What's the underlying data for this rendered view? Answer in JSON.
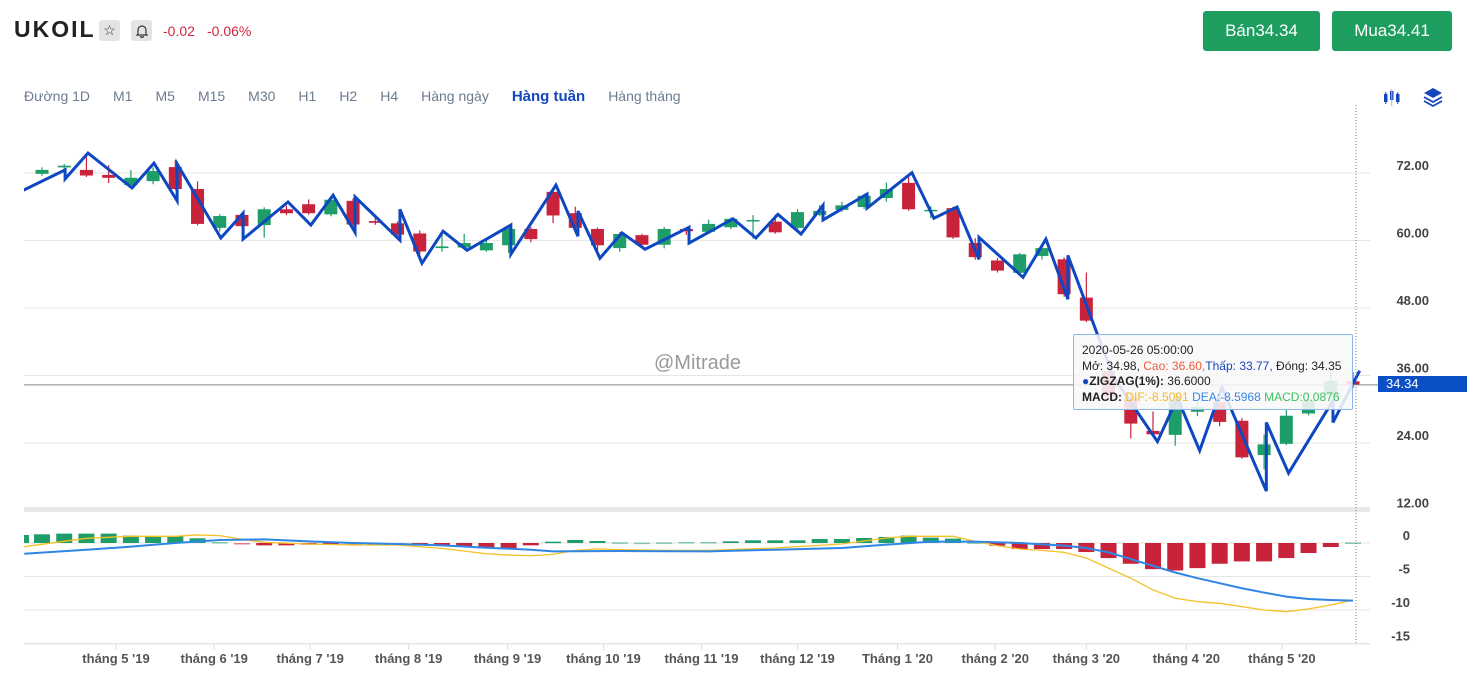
{
  "header": {
    "symbol": "UKOIL",
    "change_abs": "-0.02",
    "change_pct": "-0.06%",
    "sell_label": "Bán34.34",
    "buy_label": "Mua34.41"
  },
  "timeframes": [
    {
      "label": "Đường 1D",
      "active": false
    },
    {
      "label": "M1",
      "active": false
    },
    {
      "label": "M5",
      "active": false
    },
    {
      "label": "M15",
      "active": false
    },
    {
      "label": "M30",
      "active": false
    },
    {
      "label": "H1",
      "active": false
    },
    {
      "label": "H2",
      "active": false
    },
    {
      "label": "H4",
      "active": false
    },
    {
      "label": "Hàng ngày",
      "active": false
    },
    {
      "label": "Hàng tuần",
      "active": true
    },
    {
      "label": "Hàng tháng",
      "active": false
    }
  ],
  "watermark": "@Mitrade",
  "current_price": "34.34",
  "tooltip": {
    "datetime": "2020-05-26 05:00:00",
    "open": "Mở: 34.98,",
    "high": "Cao: 36.60,",
    "low": "Thấp: 33.77,",
    "close": "Đóng: 34.35",
    "zigzag_name": "ZIGZAG(1%):",
    "zigzag_value": "36.6000",
    "macd_name": "MACD:",
    "dif": "DIF:-8.5091",
    "dea": "DEA:-8.5968",
    "macd": "MACD:0.0876"
  },
  "colors": {
    "up": "#1f9d68",
    "down": "#c8233b",
    "zigzag": "#0d47c1",
    "dif": "#f5c026",
    "dea": "#2f86e6",
    "accent": "#1446bd"
  },
  "chart_data": {
    "type": "candlestick",
    "price_axis": {
      "ticks": [
        "72.00",
        "60.00",
        "48.00",
        "36.00",
        "24.00",
        "12.00"
      ],
      "values": [
        72,
        60,
        48,
        36,
        24,
        12
      ],
      "range": [
        12,
        72
      ]
    },
    "macd_axis": {
      "ticks": [
        "0",
        "-5",
        "-10",
        "-15"
      ],
      "values": [
        0,
        -5,
        -10,
        -15
      ]
    },
    "x_labels": [
      {
        "label": "tháng 5 '19",
        "index": 3.33
      },
      {
        "label": "tháng 6 '19",
        "index": 7.75
      },
      {
        "label": "tháng 7 '19",
        "index": 12.07
      },
      {
        "label": "tháng 8 '19",
        "index": 16.5
      },
      {
        "label": "tháng 9 '19",
        "index": 20.95
      },
      {
        "label": "tháng 10 '19",
        "index": 25.27
      },
      {
        "label": "tháng 11 '19",
        "index": 29.68
      },
      {
        "label": "tháng 12 '19",
        "index": 34.0
      },
      {
        "label": "Tháng 1 '20",
        "index": 38.5
      },
      {
        "label": "tháng 2 '20",
        "index": 42.9
      },
      {
        "label": "tháng 3 '20",
        "index": 47.0
      },
      {
        "label": "tháng 4 '20",
        "index": 51.5
      },
      {
        "label": "tháng 5 '20",
        "index": 55.8
      }
    ],
    "candles_ohlc": [
      [
        71.85,
        73.0,
        71.5,
        72.55
      ],
      [
        73.0,
        73.6,
        72.7,
        73.3
      ],
      [
        72.55,
        75.3,
        71.3,
        71.55
      ],
      [
        71.65,
        73.4,
        70.2,
        71.15
      ],
      [
        69.85,
        72.5,
        69.6,
        71.15
      ],
      [
        70.55,
        73.0,
        70.0,
        72.35
      ],
      [
        73.05,
        74.3,
        69.0,
        69.15
      ],
      [
        69.15,
        70.5,
        62.7,
        62.95
      ],
      [
        62.25,
        64.7,
        61.6,
        64.35
      ],
      [
        64.55,
        64.8,
        62.3,
        62.55
      ],
      [
        62.75,
        65.9,
        60.5,
        65.55
      ],
      [
        65.55,
        66.2,
        64.5,
        64.85
      ],
      [
        66.45,
        67.3,
        64.6,
        64.85
      ],
      [
        64.65,
        67.8,
        64.3,
        67.25
      ],
      [
        67.05,
        67.5,
        62.6,
        62.85
      ],
      [
        63.45,
        64.0,
        62.8,
        63.15
      ],
      [
        63.05,
        63.4,
        60.8,
        61.05
      ],
      [
        61.25,
        61.8,
        57.5,
        58.05
      ],
      [
        58.65,
        61.5,
        58.0,
        58.95
      ],
      [
        58.75,
        61.2,
        58.5,
        59.55
      ],
      [
        58.25,
        60.3,
        58.0,
        59.55
      ],
      [
        59.15,
        62.3,
        57.8,
        62.05
      ],
      [
        62.05,
        62.4,
        59.7,
        60.25
      ],
      [
        68.65,
        69.3,
        63.1,
        64.45
      ],
      [
        64.85,
        66.0,
        61.9,
        62.25
      ],
      [
        62.05,
        62.3,
        57.4,
        59.15
      ],
      [
        58.65,
        61.5,
        58.0,
        61.15
      ],
      [
        60.95,
        61.2,
        58.6,
        59.25
      ],
      [
        59.25,
        62.4,
        58.6,
        62.05
      ],
      [
        62.05,
        62.4,
        61.0,
        61.65
      ],
      [
        61.55,
        63.7,
        61.2,
        62.95
      ],
      [
        62.35,
        64.1,
        62.0,
        63.85
      ],
      [
        63.55,
        64.5,
        60.3,
        63.65
      ],
      [
        63.35,
        64.6,
        61.2,
        61.45
      ],
      [
        62.25,
        65.6,
        61.8,
        65.05
      ],
      [
        64.55,
        66.3,
        64.3,
        65.25
      ],
      [
        65.45,
        66.9,
        65.1,
        66.25
      ],
      [
        65.95,
        68.3,
        65.6,
        67.95
      ],
      [
        67.55,
        70.3,
        66.9,
        69.15
      ],
      [
        70.25,
        71.5,
        65.3,
        65.55
      ],
      [
        65.35,
        66.1,
        64.0,
        65.45
      ],
      [
        65.75,
        66.0,
        60.3,
        60.55
      ],
      [
        59.55,
        60.4,
        56.6,
        57.05
      ],
      [
        56.45,
        56.9,
        54.3,
        54.65
      ],
      [
        54.25,
        57.8,
        53.8,
        57.55
      ],
      [
        57.25,
        59.0,
        56.6,
        58.65
      ],
      [
        56.65,
        57.0,
        50.0,
        50.45
      ],
      [
        49.85,
        54.3,
        45.5,
        45.75
      ],
      [
        36.75,
        38.0,
        31.5,
        32.25
      ],
      [
        32.05,
        33.0,
        24.8,
        27.45
      ],
      [
        26.15,
        29.6,
        25.3,
        25.55
      ],
      [
        25.45,
        33.0,
        23.5,
        31.55
      ],
      [
        29.55,
        31.5,
        28.8,
        30.45
      ],
      [
        31.25,
        32.0,
        27.0,
        27.75
      ],
      [
        27.95,
        28.4,
        21.2,
        21.45
      ],
      [
        21.85,
        25.5,
        19.3,
        23.75
      ],
      [
        23.85,
        30.0,
        23.6,
        28.85
      ],
      [
        29.25,
        32.8,
        28.9,
        31.65
      ],
      [
        32.45,
        37.0,
        32.0,
        35.05
      ],
      [
        34.98,
        36.6,
        33.77,
        34.35
      ]
    ],
    "zigzag": [
      [
        -0.99,
        68.65
      ],
      [
        1.04,
        72.55
      ],
      [
        1.04,
        70.95
      ],
      [
        2.07,
        75.55
      ],
      [
        4.05,
        69.35
      ],
      [
        5.04,
        73.75
      ],
      [
        6.08,
        67.05
      ],
      [
        6.08,
        73.65
      ],
      [
        8.05,
        60.45
      ],
      [
        9.05,
        64.85
      ],
      [
        9.05,
        60.25
      ],
      [
        11.07,
        66.85
      ],
      [
        12.1,
        62.75
      ],
      [
        13.1,
        68.05
      ],
      [
        14.09,
        61.45
      ],
      [
        14.09,
        67.75
      ],
      [
        16.11,
        60.05
      ],
      [
        16.11,
        65.55
      ],
      [
        17.1,
        55.95
      ],
      [
        18.05,
        61.65
      ],
      [
        19.13,
        58.25
      ],
      [
        21.1,
        62.75
      ],
      [
        21.1,
        57.55
      ],
      [
        23.13,
        69.85
      ],
      [
        24.12,
        60.75
      ],
      [
        24.12,
        65.25
      ],
      [
        25.11,
        56.85
      ],
      [
        26.1,
        61.35
      ],
      [
        27.14,
        58.45
      ],
      [
        29.12,
        62.35
      ],
      [
        29.12,
        59.55
      ],
      [
        31.1,
        63.85
      ],
      [
        32.13,
        60.45
      ],
      [
        33.12,
        64.65
      ],
      [
        34.16,
        61.15
      ],
      [
        35.15,
        66.25
      ],
      [
        35.15,
        63.65
      ],
      [
        37.13,
        68.25
      ],
      [
        37.13,
        65.75
      ],
      [
        39.15,
        72.05
      ],
      [
        40.14,
        63.95
      ],
      [
        41.18,
        65.95
      ],
      [
        42.17,
        56.65
      ],
      [
        42.17,
        60.55
      ],
      [
        44.15,
        53.45
      ],
      [
        45.18,
        60.25
      ],
      [
        46.17,
        49.55
      ],
      [
        46.17,
        57.35
      ],
      [
        48.2,
        35.9
      ],
      [
        50.2,
        24.25
      ],
      [
        51.1,
        32.0
      ],
      [
        52.1,
        22.65
      ],
      [
        53.1,
        33.85
      ],
      [
        55.1,
        15.45
      ],
      [
        55.1,
        27.65
      ],
      [
        56.1,
        18.65
      ],
      [
        58.1,
        31.55
      ],
      [
        58.1,
        27.65
      ],
      [
        59.3,
        36.85
      ]
    ],
    "macd_hist": [
      1.3,
      1.4,
      1.4,
      1.4,
      1.1,
      1.0,
      1.0,
      0.7,
      0.15,
      -0.15,
      -0.35,
      -0.35,
      -0.25,
      -0.25,
      -0.1,
      -0.1,
      -0.15,
      -0.3,
      -0.45,
      -0.55,
      -0.8,
      -0.75,
      -0.35,
      0.2,
      0.45,
      0.3,
      0.1,
      0.05,
      0.1,
      0.15,
      0.15,
      0.25,
      0.4,
      0.4,
      0.4,
      0.6,
      0.6,
      0.75,
      0.9,
      1.1,
      0.8,
      0.65,
      0.1,
      -0.4,
      -0.9,
      -0.9,
      -0.9,
      -1.35,
      -2.25,
      -3.1,
      -3.9,
      -4.1,
      -3.75,
      -3.1,
      -2.75,
      -2.75,
      -2.25,
      -1.5,
      -0.6,
      0.09
    ],
    "dif": [
      [
        -0.8,
        -0.55
      ],
      [
        2,
        0.7
      ],
      [
        4,
        1.0
      ],
      [
        6,
        1.0
      ],
      [
        7,
        1.2
      ],
      [
        8,
        1.1
      ],
      [
        9,
        0.55
      ],
      [
        10,
        0.1
      ],
      [
        12,
        -0.15
      ],
      [
        14,
        -0.3
      ],
      [
        16,
        -0.3
      ],
      [
        18,
        -0.8
      ],
      [
        20,
        -1.6
      ],
      [
        21,
        -1.8
      ],
      [
        22,
        -1.9
      ],
      [
        23,
        -1.7
      ],
      [
        24,
        -1.1
      ],
      [
        25,
        -0.9
      ],
      [
        26,
        -1.0
      ],
      [
        28,
        -1.1
      ],
      [
        30,
        -1.1
      ],
      [
        33,
        -0.75
      ],
      [
        36,
        -0.15
      ],
      [
        38,
        0.75
      ],
      [
        39,
        1.0
      ],
      [
        41,
        1.0
      ],
      [
        42,
        0.25
      ],
      [
        43,
        -0.4
      ],
      [
        44,
        -0.9
      ],
      [
        45,
        -1.1
      ],
      [
        46,
        -1.4
      ],
      [
        47,
        -2.25
      ],
      [
        48,
        -3.75
      ],
      [
        49,
        -5.25
      ],
      [
        50,
        -7.0
      ],
      [
        51,
        -8.25
      ],
      [
        52,
        -8.75
      ],
      [
        53,
        -9.0
      ],
      [
        54,
        -9.5
      ],
      [
        55,
        -10.0
      ],
      [
        56,
        -10.25
      ],
      [
        57,
        -9.85
      ],
      [
        58,
        -9.25
      ],
      [
        59,
        -8.5
      ]
    ],
    "dea": [
      [
        -0.8,
        -1.6
      ],
      [
        2,
        -1.0
      ],
      [
        4,
        -0.55
      ],
      [
        6,
        0
      ],
      [
        8,
        0.45
      ],
      [
        10,
        0.55
      ],
      [
        12,
        0.25
      ],
      [
        14,
        0
      ],
      [
        16,
        -0.15
      ],
      [
        18,
        -0.35
      ],
      [
        20,
        -0.7
      ],
      [
        22,
        -1.0
      ],
      [
        23,
        -1.25
      ],
      [
        26,
        -1.2
      ],
      [
        30,
        -1.25
      ],
      [
        33,
        -1.0
      ],
      [
        36,
        -0.75
      ],
      [
        38,
        -0.25
      ],
      [
        40,
        0.2
      ],
      [
        42,
        0.2
      ],
      [
        44,
        0
      ],
      [
        46,
        -0.4
      ],
      [
        47,
        -0.75
      ],
      [
        48,
        -1.4
      ],
      [
        49,
        -2.4
      ],
      [
        50,
        -3.4
      ],
      [
        51,
        -4.4
      ],
      [
        52,
        -5.25
      ],
      [
        53,
        -6.0
      ],
      [
        54,
        -6.75
      ],
      [
        55,
        -7.4
      ],
      [
        56,
        -8.0
      ],
      [
        57,
        -8.35
      ],
      [
        58,
        -8.5
      ],
      [
        59,
        -8.6
      ]
    ]
  }
}
